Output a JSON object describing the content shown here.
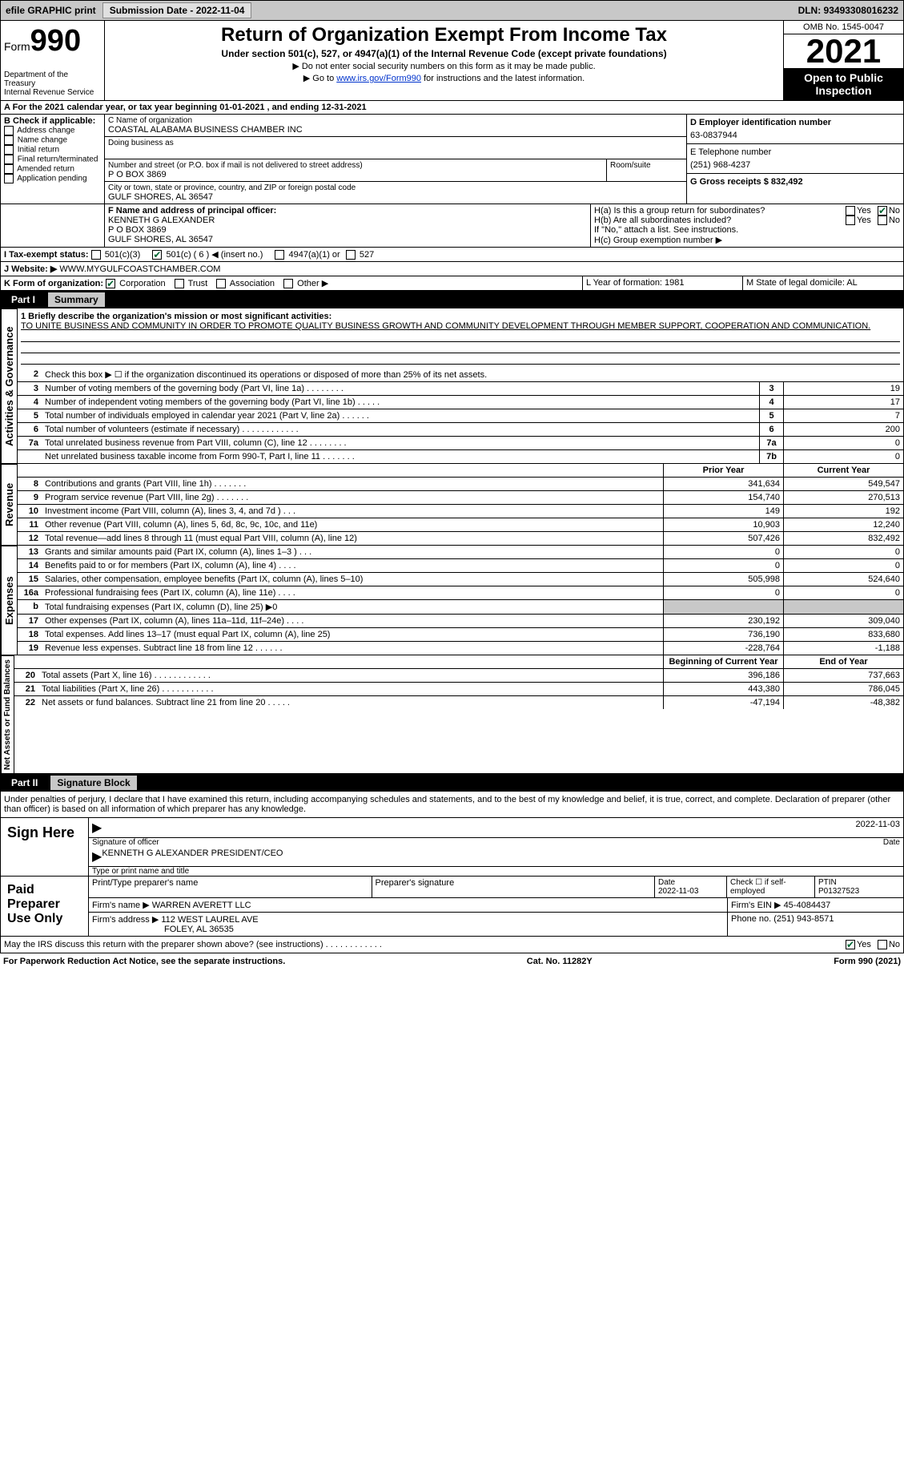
{
  "topbar": {
    "efile": "efile GRAPHIC print",
    "submission": "Submission Date - 2022-11-04",
    "dln": "DLN: 93493308016232"
  },
  "header": {
    "form": "Form",
    "form_num": "990",
    "dept": "Department of the Treasury\nInternal Revenue Service",
    "title": "Return of Organization Exempt From Income Tax",
    "subtitle": "Under section 501(c), 527, or 4947(a)(1) of the Internal Revenue Code (except private foundations)",
    "note1": "▶ Do not enter social security numbers on this form as it may be made public.",
    "note2_pre": "▶ Go to ",
    "note2_link": "www.irs.gov/Form990",
    "note2_post": " for instructions and the latest information.",
    "omb": "OMB No. 1545-0047",
    "year": "2021",
    "inspect": "Open to Public Inspection"
  },
  "line_a": "A For the 2021 calendar year, or tax year beginning 01-01-2021    , and ending 12-31-2021",
  "section_b": {
    "label": "B Check if applicable:",
    "options": [
      "Address change",
      "Name change",
      "Initial return",
      "Final return/terminated",
      "Amended return",
      "Application pending"
    ]
  },
  "section_c": {
    "name_label": "C Name of organization",
    "name": "COASTAL ALABAMA BUSINESS CHAMBER INC",
    "dba_label": "Doing business as",
    "dba": "",
    "addr_label": "Number and street (or P.O. box if mail is not delivered to street address)",
    "addr": "P O BOX 3869",
    "room_label": "Room/suite",
    "city_label": "City or town, state or province, country, and ZIP or foreign postal code",
    "city": "GULF SHORES, AL  36547"
  },
  "section_d": {
    "label": "D Employer identification number",
    "value": "63-0837944"
  },
  "section_e": {
    "label": "E Telephone number",
    "value": "(251) 968-4237"
  },
  "section_g": {
    "label": "G Gross receipts $ 832,492"
  },
  "section_f": {
    "label": "F Name and address of principal officer:",
    "lines": [
      "KENNETH G ALEXANDER",
      "P O BOX 3869",
      "GULF SHORES, AL  36547"
    ]
  },
  "section_h": {
    "a": "H(a)  Is this a group return for subordinates?",
    "a_no": "No",
    "a_yes": "Yes",
    "b": "H(b)  Are all subordinates included?",
    "b_note": "If \"No,\" attach a list. See instructions.",
    "c": "H(c)  Group exemption number ▶"
  },
  "line_i": {
    "label": "I   Tax-exempt status:",
    "opt1": "501(c)(3)",
    "opt2": "501(c) ( 6 ) ◀ (insert no.)",
    "opt3": "4947(a)(1) or",
    "opt4": "527"
  },
  "line_j": {
    "label": "J   Website: ▶",
    "value": "WWW.MYGULFCOASTCHAMBER.COM"
  },
  "line_k": {
    "label": "K Form of organization:",
    "opts": [
      "Corporation",
      "Trust",
      "Association",
      "Other ▶"
    ]
  },
  "line_l": {
    "label": "L Year of formation: 1981"
  },
  "line_m": {
    "label": "M State of legal domicile: AL"
  },
  "part1": {
    "header": "Part I",
    "title": "Summary",
    "mission_label": "1  Briefly describe the organization's mission or most significant activities:",
    "mission": "TO UNITE BUSINESS AND COMMUNITY IN ORDER TO PROMOTE QUALITY BUSINESS GROWTH AND COMMUNITY DEVELOPMENT THROUGH MEMBER SUPPORT, COOPERATION AND COMMUNICATION.",
    "line2": "Check this box ▶ ☐ if the organization discontinued its operations or disposed of more than 25% of its net assets.",
    "governance": "Activities & Governance",
    "revenue": "Revenue",
    "expenses": "Expenses",
    "netassets": "Net Assets or Fund Balances",
    "rows_gov": [
      {
        "n": "3",
        "label": "Number of voting members of the governing body (Part VI, line 1a)   .    .    .    .    .    .    .    .",
        "box": "3",
        "val": "19"
      },
      {
        "n": "4",
        "label": "Number of independent voting members of the governing body (Part VI, line 1b)   .    .    .    .    .",
        "box": "4",
        "val": "17"
      },
      {
        "n": "5",
        "label": "Total number of individuals employed in calendar year 2021 (Part V, line 2a)   .    .    .    .    .    .",
        "box": "5",
        "val": "7"
      },
      {
        "n": "6",
        "label": "Total number of volunteers (estimate if necessary)    .    .    .    .    .    .    .    .    .    .    .    .",
        "box": "6",
        "val": "200"
      },
      {
        "n": "7a",
        "label": "Total unrelated business revenue from Part VIII, column (C), line 12   .    .    .    .    .    .    .    .",
        "box": "7a",
        "val": "0"
      },
      {
        "n": "",
        "label": "Net unrelated business taxable income from Form 990-T, Part I, line 11   .    .    .    .    .    .    .",
        "box": "7b",
        "val": "0"
      }
    ],
    "prior_year": "Prior Year",
    "current_year": "Current Year",
    "beg_year": "Beginning of Current Year",
    "end_year": "End of Year",
    "rows_rev": [
      {
        "n": "8",
        "label": "Contributions and grants (Part VIII, line 1h)   .    .    .    .    .    .    .",
        "p": "341,634",
        "c": "549,547"
      },
      {
        "n": "9",
        "label": "Program service revenue (Part VIII, line 2g)   .    .    .    .    .    .    .",
        "p": "154,740",
        "c": "270,513"
      },
      {
        "n": "10",
        "label": "Investment income (Part VIII, column (A), lines 3, 4, and 7d )    .    .    .",
        "p": "149",
        "c": "192"
      },
      {
        "n": "11",
        "label": "Other revenue (Part VIII, column (A), lines 5, 6d, 8c, 9c, 10c, and 11e)",
        "p": "10,903",
        "c": "12,240"
      },
      {
        "n": "12",
        "label": "Total revenue—add lines 8 through 11 (must equal Part VIII, column (A), line 12)",
        "p": "507,426",
        "c": "832,492"
      }
    ],
    "rows_exp": [
      {
        "n": "13",
        "label": "Grants and similar amounts paid (Part IX, column (A), lines 1–3 )   .    .    .",
        "p": "0",
        "c": "0"
      },
      {
        "n": "14",
        "label": "Benefits paid to or for members (Part IX, column (A), line 4)   .    .    .    .",
        "p": "0",
        "c": "0"
      },
      {
        "n": "15",
        "label": "Salaries, other compensation, employee benefits (Part IX, column (A), lines 5–10)",
        "p": "505,998",
        "c": "524,640"
      },
      {
        "n": "16a",
        "label": "Professional fundraising fees (Part IX, column (A), line 11e)   .    .    .    .",
        "p": "0",
        "c": "0"
      },
      {
        "n": "b",
        "label": "Total fundraising expenses (Part IX, column (D), line 25) ▶0",
        "p": "",
        "c": "",
        "shade": true
      },
      {
        "n": "17",
        "label": "Other expenses (Part IX, column (A), lines 11a–11d, 11f–24e)   .    .    .    .",
        "p": "230,192",
        "c": "309,040"
      },
      {
        "n": "18",
        "label": "Total expenses. Add lines 13–17 (must equal Part IX, column (A), line 25)",
        "p": "736,190",
        "c": "833,680"
      },
      {
        "n": "19",
        "label": "Revenue less expenses. Subtract line 18 from line 12   .    .    .    .    .    .",
        "p": "-228,764",
        "c": "-1,188"
      }
    ],
    "rows_net": [
      {
        "n": "20",
        "label": "Total assets (Part X, line 16)   .    .    .    .    .    .    .    .    .    .    .    .",
        "p": "396,186",
        "c": "737,663"
      },
      {
        "n": "21",
        "label": "Total liabilities (Part X, line 26)   .    .    .    .    .    .    .    .    .    .    .",
        "p": "443,380",
        "c": "786,045"
      },
      {
        "n": "22",
        "label": "Net assets or fund balances. Subtract line 21 from line 20   .    .    .    .    .",
        "p": "-47,194",
        "c": "-48,382"
      }
    ]
  },
  "part2": {
    "header": "Part II",
    "title": "Signature Block",
    "declaration": "Under penalties of perjury, I declare that I have examined this return, including accompanying schedules and statements, and to the best of my knowledge and belief, it is true, correct, and complete. Declaration of preparer (other than officer) is based on all information of which preparer has any knowledge.",
    "sign_here": "Sign Here",
    "sig_officer": "Signature of officer",
    "sig_date": "2022-11-03",
    "officer_name": "KENNETH G ALEXANDER  PRESIDENT/CEO",
    "type_name": "Type or print name and title",
    "paid_prep": "Paid Preparer Use Only",
    "prep_name_label": "Print/Type preparer's name",
    "prep_sig_label": "Preparer's signature",
    "date_label": "Date",
    "date_val": "2022-11-03",
    "check_self": "Check ☐ if self-employed",
    "ptin_label": "PTIN",
    "ptin": "P01327523",
    "firm_name_label": "Firm's name    ▶",
    "firm_name": "WARREN AVERETT LLC",
    "firm_ein_label": "Firm's EIN ▶",
    "firm_ein": "45-4084437",
    "firm_addr_label": "Firm's address ▶",
    "firm_addr": "112 WEST LAUREL AVE",
    "firm_city": "FOLEY, AL  36535",
    "phone_label": "Phone no.",
    "phone": "(251) 943-8571",
    "discuss": "May the IRS discuss this return with the preparer shown above? (see instructions)   .    .    .    .    .    .    .    .    .    .    .    .",
    "yes": "Yes",
    "no": "No"
  },
  "footer": {
    "left": "For Paperwork Reduction Act Notice, see the separate instructions.",
    "mid": "Cat. No. 11282Y",
    "right": "Form 990 (2021)"
  }
}
